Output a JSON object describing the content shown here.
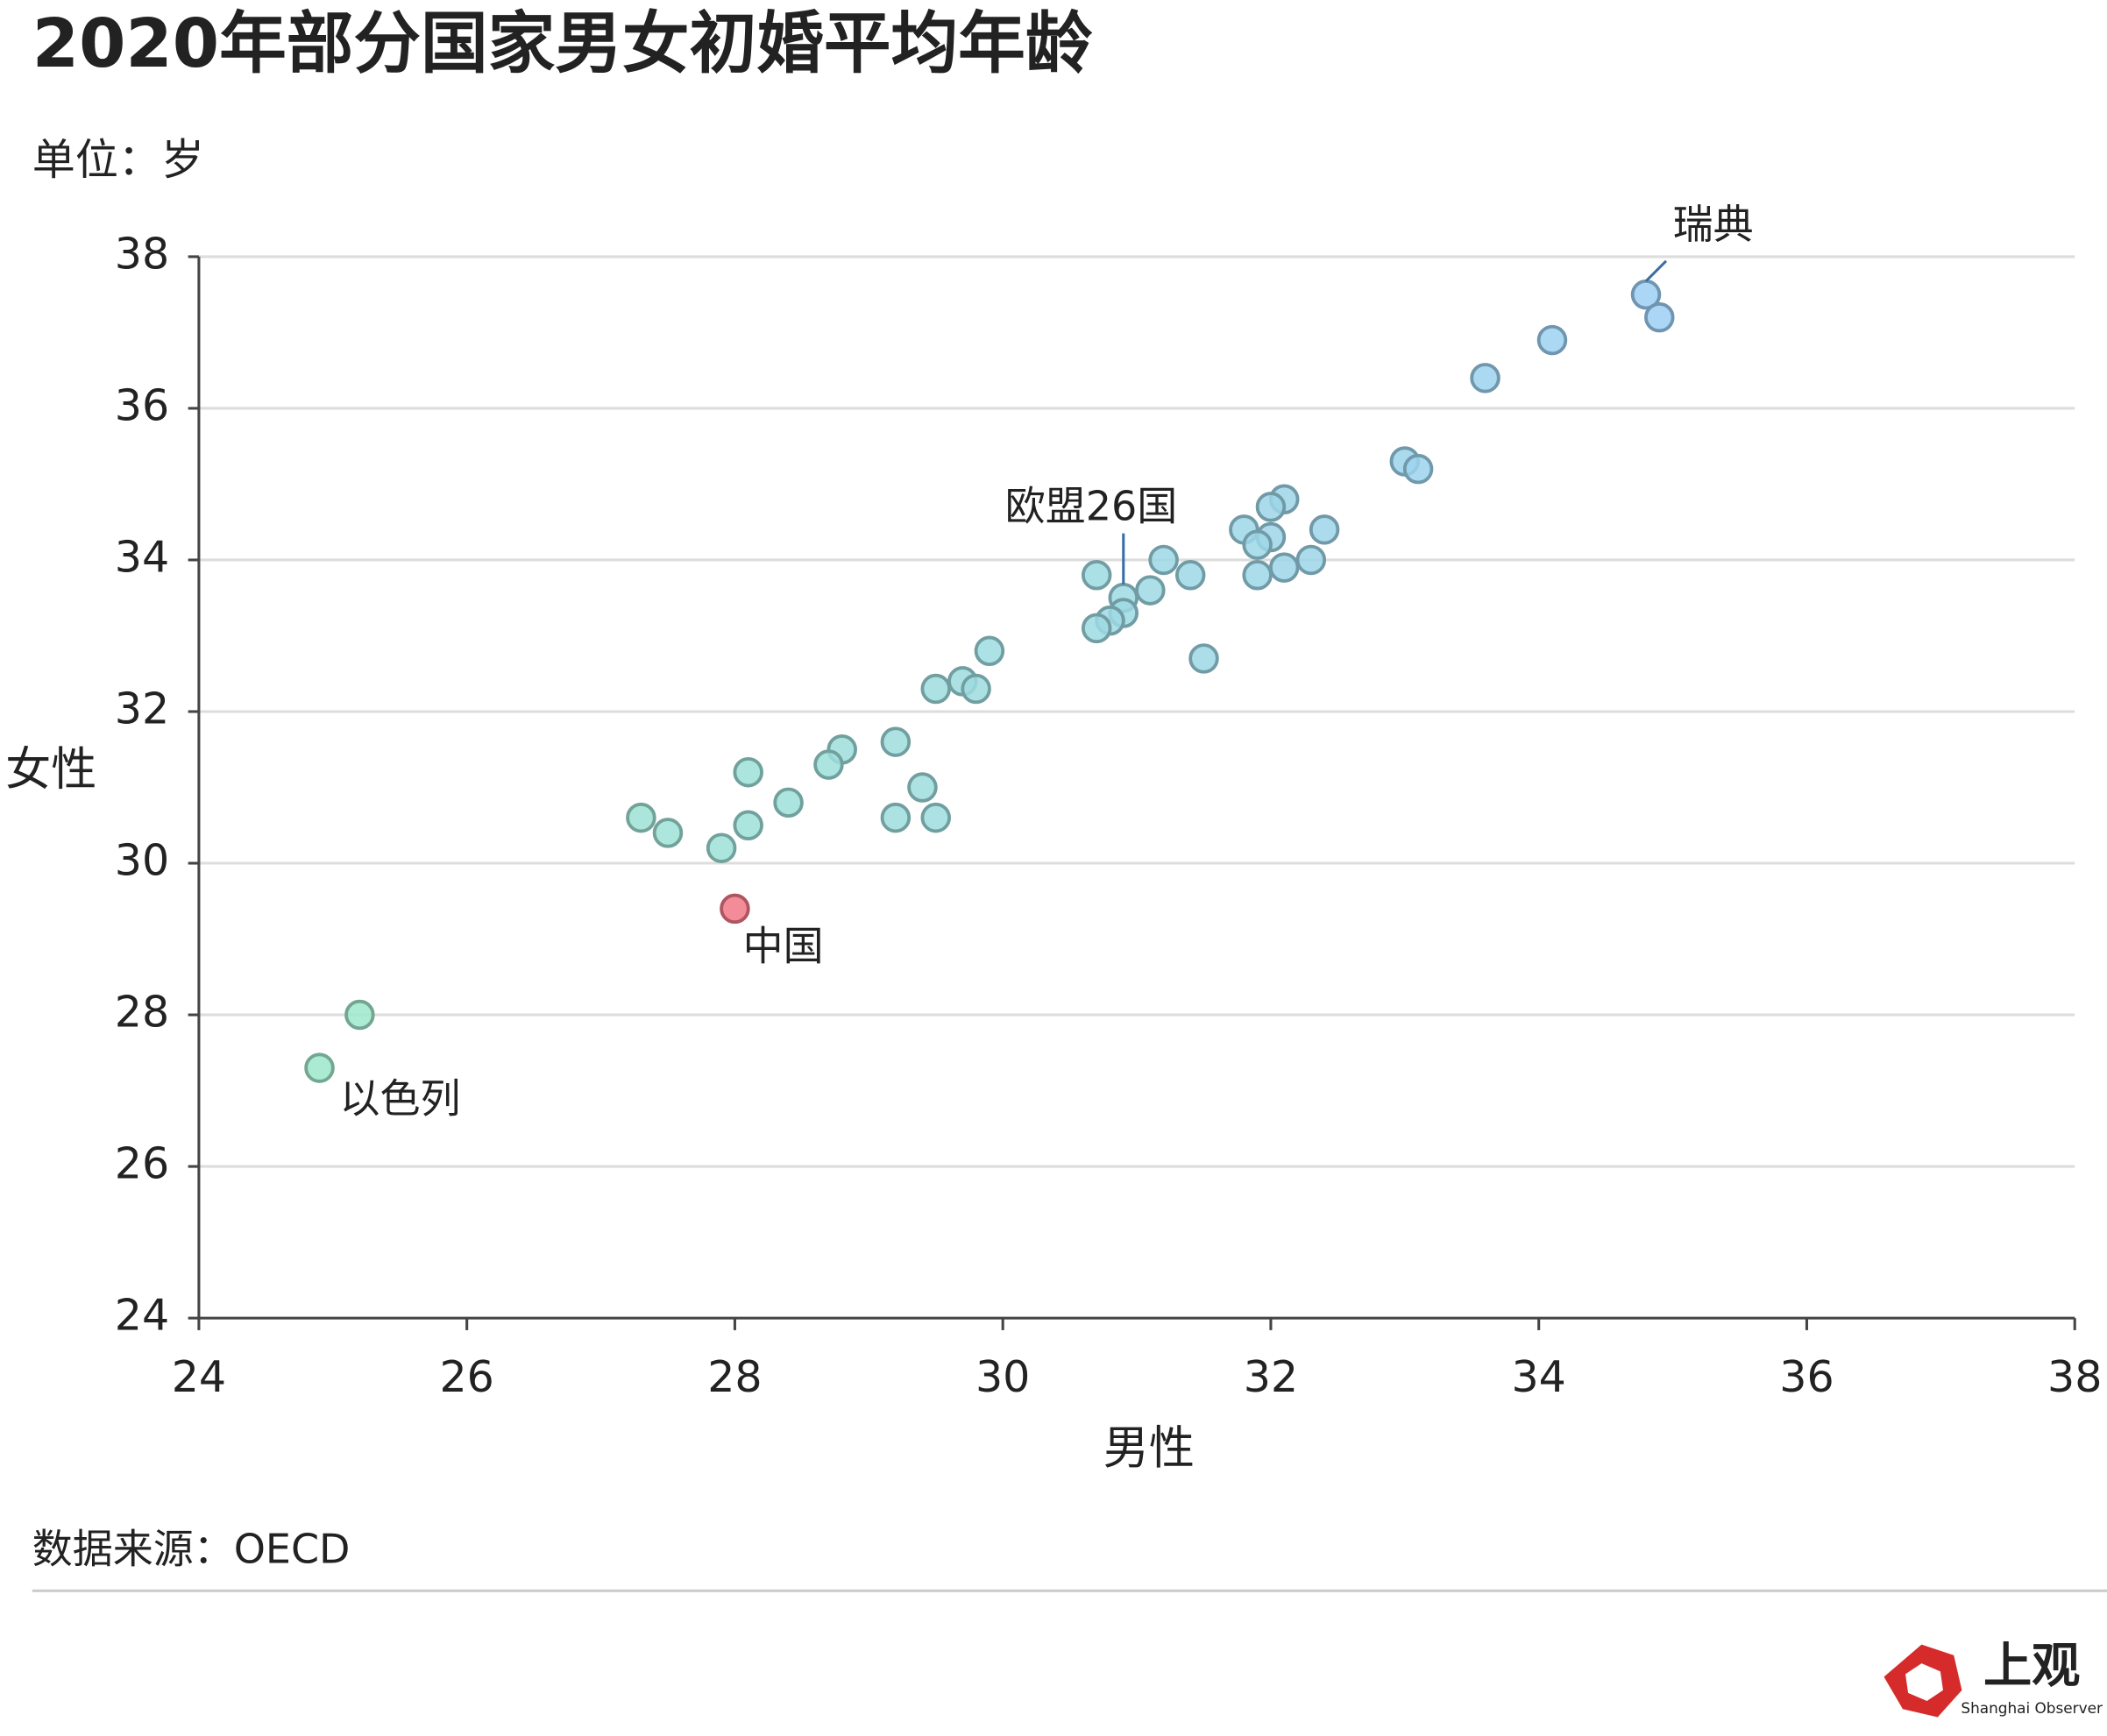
{
  "chart_data": {
    "type": "scatter",
    "title": "2020年部分国家男女初婚平均年龄",
    "subtitle": "单位：岁",
    "xlabel": "男性",
    "ylabel": "女性",
    "source": "数据来源：OECD",
    "logo": {
      "text": "上观",
      "subtext": "Shanghai Observer"
    },
    "x": [
      34.8,
      34.9,
      34.1,
      33.6,
      33.0,
      33.1,
      32.1,
      32.0,
      32.4,
      31.8,
      32.0,
      31.9,
      32.3,
      32.1,
      31.9,
      31.2,
      31.4,
      30.7,
      31.1,
      30.9,
      30.9,
      30.8,
      30.7,
      31.5,
      29.9,
      29.7,
      29.5,
      29.8,
      29.2,
      28.8,
      28.7,
      28.1,
      29.4,
      28.4,
      29.2,
      29.5,
      28.1,
      27.3,
      27.5,
      27.9,
      28.0,
      25.2,
      24.9
    ],
    "values": [
      37.5,
      37.2,
      36.9,
      36.4,
      35.3,
      35.2,
      34.8,
      34.7,
      34.4,
      34.4,
      34.3,
      34.2,
      34.0,
      33.9,
      33.8,
      34.0,
      33.8,
      33.8,
      33.6,
      33.5,
      33.3,
      33.2,
      33.1,
      32.7,
      32.8,
      32.4,
      32.3,
      32.3,
      31.6,
      31.5,
      31.3,
      31.2,
      31.0,
      30.8,
      30.6,
      30.6,
      30.5,
      30.6,
      30.4,
      30.2,
      29.4,
      28.0,
      27.3
    ],
    "point_labels": [
      "瑞典",
      null,
      null,
      null,
      null,
      null,
      null,
      null,
      null,
      null,
      null,
      null,
      null,
      null,
      null,
      null,
      null,
      null,
      null,
      "欧盟26国",
      null,
      null,
      null,
      null,
      null,
      null,
      null,
      null,
      null,
      null,
      null,
      null,
      null,
      null,
      null,
      null,
      null,
      null,
      null,
      null,
      "中国",
      null,
      "以色列"
    ],
    "colors": [
      null,
      null,
      null,
      null,
      null,
      null,
      null,
      null,
      null,
      null,
      null,
      null,
      null,
      null,
      null,
      null,
      null,
      null,
      null,
      null,
      null,
      null,
      null,
      null,
      null,
      null,
      null,
      null,
      null,
      null,
      null,
      null,
      null,
      null,
      null,
      null,
      null,
      null,
      null,
      null,
      "#f27786",
      null,
      null
    ],
    "color_scale": [
      "#9ee8cb",
      "#9ccff4"
    ],
    "xlim": [
      24,
      38
    ],
    "xticks": [
      24,
      26,
      28,
      30,
      32,
      34,
      36,
      38
    ],
    "ylim": [
      24,
      38
    ],
    "yticks": [
      24,
      26,
      28,
      30,
      32,
      34,
      36,
      38
    ],
    "grid": true
  }
}
